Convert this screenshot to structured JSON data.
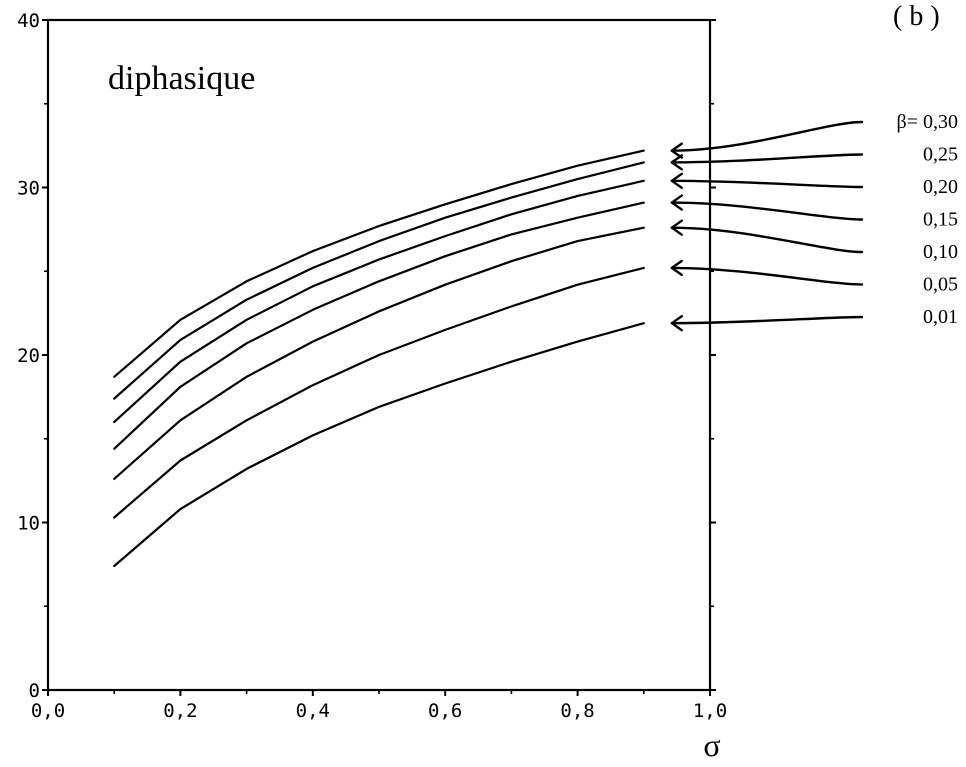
{
  "panel_label": "( b )",
  "chart_data": {
    "type": "line",
    "title": "",
    "annotation": "diphasique",
    "xlabel": "σ",
    "ylabel": "",
    "xlim": [
      0.0,
      1.0
    ],
    "ylim": [
      0,
      40
    ],
    "xticks": [
      "0,0",
      "0,2",
      "0,4",
      "0,6",
      "0,8",
      "1,0"
    ],
    "yticks": [
      "0",
      "10",
      "20",
      "30",
      "40"
    ],
    "legend_prefix": "β=",
    "grid": false,
    "x": [
      0.1,
      0.2,
      0.3,
      0.4,
      0.5,
      0.6,
      0.7,
      0.8,
      0.9
    ],
    "series": [
      {
        "name": "0,30",
        "values": [
          18.7,
          22.1,
          24.4,
          26.2,
          27.7,
          29.0,
          30.2,
          31.3,
          32.2
        ]
      },
      {
        "name": "0,25",
        "values": [
          17.4,
          20.9,
          23.3,
          25.2,
          26.8,
          28.2,
          29.4,
          30.5,
          31.5
        ]
      },
      {
        "name": "0,20",
        "values": [
          16.0,
          19.6,
          22.1,
          24.1,
          25.7,
          27.1,
          28.4,
          29.5,
          30.4
        ]
      },
      {
        "name": "0,15",
        "values": [
          14.4,
          18.1,
          20.7,
          22.7,
          24.4,
          25.9,
          27.2,
          28.2,
          29.1
        ]
      },
      {
        "name": "0,10",
        "values": [
          12.6,
          16.1,
          18.7,
          20.8,
          22.6,
          24.2,
          25.6,
          26.8,
          27.6
        ]
      },
      {
        "name": "0,05",
        "values": [
          10.3,
          13.7,
          16.1,
          18.2,
          20.0,
          21.5,
          22.9,
          24.2,
          25.2
        ]
      },
      {
        "name": "0,01",
        "values": [
          7.4,
          10.8,
          13.2,
          15.2,
          16.9,
          18.3,
          19.6,
          20.8,
          21.9
        ]
      }
    ]
  }
}
